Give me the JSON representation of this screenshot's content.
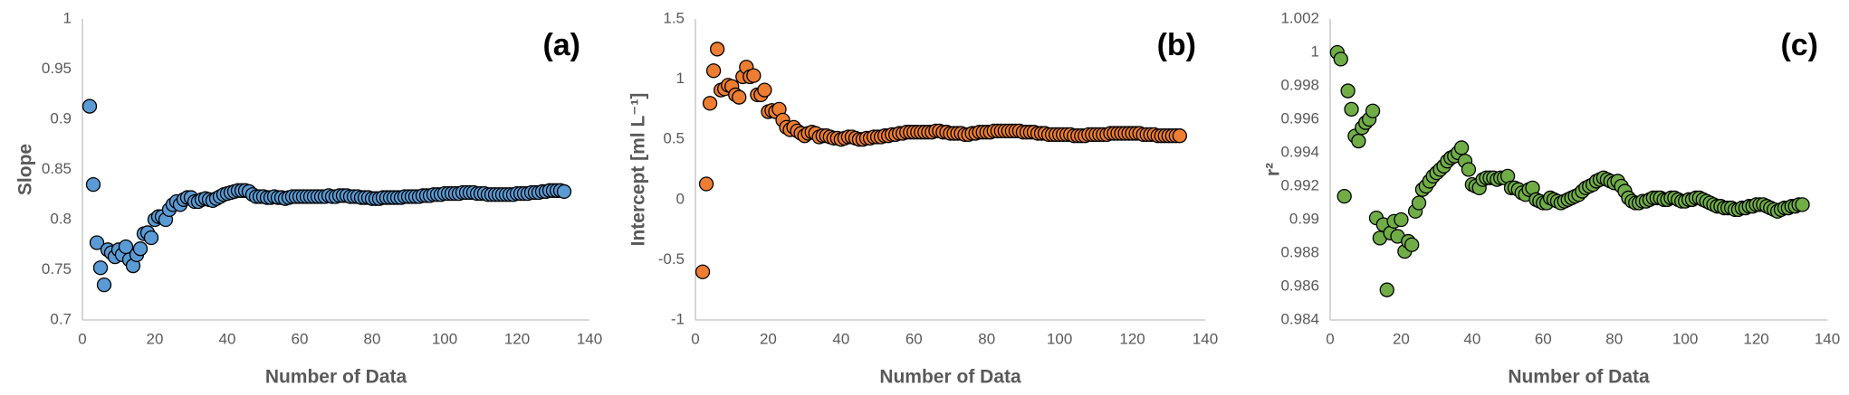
{
  "chart_data": [
    {
      "type": "scatter",
      "panel_label": "(a)",
      "xlabel": "Number of Data",
      "ylabel": "Slope",
      "color": "#5b9bd5",
      "xlim": [
        0,
        140
      ],
      "xticks": [
        0,
        20,
        40,
        60,
        80,
        100,
        120,
        140
      ],
      "ylim": [
        0.7,
        1
      ],
      "yticks": [
        0.7,
        0.75,
        0.8,
        0.85,
        0.9,
        0.95,
        1
      ],
      "grid": false,
      "x": [
        2,
        3,
        4,
        5,
        6,
        7,
        8,
        9,
        10,
        11,
        12,
        13,
        14,
        15,
        16,
        17,
        18,
        19,
        20,
        21,
        22,
        23,
        24,
        25,
        26,
        27,
        28,
        29,
        30,
        31,
        32,
        33,
        34,
        35,
        36,
        37,
        38,
        39,
        40,
        41,
        42,
        43,
        44,
        45,
        46,
        47,
        48,
        49,
        50,
        51,
        52,
        53,
        54,
        55,
        56,
        57,
        58,
        59,
        60,
        61,
        62,
        63,
        64,
        65,
        66,
        67,
        68,
        69,
        70,
        71,
        72,
        73,
        74,
        75,
        76,
        77,
        78,
        79,
        80,
        81,
        82,
        83,
        84,
        85,
        86,
        87,
        88,
        89,
        90,
        91,
        92,
        93,
        94,
        95,
        96,
        97,
        98,
        99,
        100,
        101,
        102,
        103,
        104,
        105,
        106,
        107,
        108,
        109,
        110,
        111,
        112,
        113,
        114,
        115,
        116,
        117,
        118,
        119,
        120,
        121,
        122,
        123,
        124,
        125,
        126,
        127,
        128,
        129,
        130,
        131,
        132,
        133
      ],
      "values": [
        0.913,
        0.835,
        0.777,
        0.752,
        0.735,
        0.77,
        0.767,
        0.763,
        0.77,
        0.765,
        0.773,
        0.76,
        0.754,
        0.765,
        0.771,
        0.786,
        0.787,
        0.782,
        0.8,
        0.803,
        0.803,
        0.8,
        0.81,
        0.815,
        0.818,
        0.815,
        0.82,
        0.822,
        0.822,
        0.818,
        0.818,
        0.82,
        0.821,
        0.82,
        0.819,
        0.821,
        0.823,
        0.825,
        0.826,
        0.827,
        0.828,
        0.829,
        0.829,
        0.829,
        0.828,
        0.825,
        0.823,
        0.823,
        0.823,
        0.822,
        0.822,
        0.823,
        0.822,
        0.822,
        0.821,
        0.822,
        0.823,
        0.823,
        0.823,
        0.823,
        0.823,
        0.823,
        0.823,
        0.823,
        0.823,
        0.823,
        0.824,
        0.823,
        0.823,
        0.824,
        0.824,
        0.824,
        0.823,
        0.823,
        0.823,
        0.822,
        0.822,
        0.822,
        0.821,
        0.821,
        0.821,
        0.822,
        0.822,
        0.822,
        0.822,
        0.822,
        0.822,
        0.823,
        0.823,
        0.823,
        0.823,
        0.823,
        0.824,
        0.824,
        0.824,
        0.825,
        0.825,
        0.825,
        0.826,
        0.826,
        0.826,
        0.826,
        0.826,
        0.827,
        0.827,
        0.827,
        0.827,
        0.826,
        0.826,
        0.826,
        0.825,
        0.825,
        0.825,
        0.825,
        0.825,
        0.825,
        0.825,
        0.825,
        0.826,
        0.826,
        0.826,
        0.826,
        0.827,
        0.827,
        0.827,
        0.828,
        0.828,
        0.829,
        0.829,
        0.829,
        0.829,
        0.828
      ]
    },
    {
      "type": "scatter",
      "panel_label": "(b)",
      "xlabel": "Number of Data",
      "ylabel": "Intercept [ml L⁻¹]",
      "color": "#ed7d31",
      "xlim": [
        0,
        140
      ],
      "xticks": [
        0,
        20,
        40,
        60,
        80,
        100,
        120,
        140
      ],
      "ylim": [
        -1,
        1.5
      ],
      "yticks": [
        -1,
        -0.5,
        0,
        0.5,
        1,
        1.5
      ],
      "grid": false,
      "x": [
        2,
        3,
        4,
        5,
        6,
        7,
        8,
        9,
        10,
        11,
        12,
        13,
        14,
        15,
        16,
        17,
        18,
        19,
        20,
        21,
        22,
        23,
        24,
        25,
        26,
        27,
        28,
        29,
        30,
        31,
        32,
        33,
        34,
        35,
        36,
        37,
        38,
        39,
        40,
        41,
        42,
        43,
        44,
        45,
        46,
        47,
        48,
        49,
        50,
        51,
        52,
        53,
        54,
        55,
        56,
        57,
        58,
        59,
        60,
        61,
        62,
        63,
        64,
        65,
        66,
        67,
        68,
        69,
        70,
        71,
        72,
        73,
        74,
        75,
        76,
        77,
        78,
        79,
        80,
        81,
        82,
        83,
        84,
        85,
        86,
        87,
        88,
        89,
        90,
        91,
        92,
        93,
        94,
        95,
        96,
        97,
        98,
        99,
        100,
        101,
        102,
        103,
        104,
        105,
        106,
        107,
        108,
        109,
        110,
        111,
        112,
        113,
        114,
        115,
        116,
        117,
        118,
        119,
        120,
        121,
        122,
        123,
        124,
        125,
        126,
        127,
        128,
        129,
        130,
        131,
        132,
        133
      ],
      "values": [
        -0.6,
        0.13,
        0.8,
        1.07,
        1.25,
        0.91,
        0.92,
        0.95,
        0.94,
        0.87,
        0.85,
        1.02,
        1.1,
        1.02,
        1.03,
        0.87,
        0.87,
        0.91,
        0.73,
        0.74,
        0.73,
        0.75,
        0.66,
        0.6,
        0.58,
        0.6,
        0.57,
        0.55,
        0.53,
        0.55,
        0.56,
        0.55,
        0.52,
        0.53,
        0.53,
        0.52,
        0.51,
        0.51,
        0.5,
        0.51,
        0.52,
        0.52,
        0.51,
        0.5,
        0.5,
        0.51,
        0.51,
        0.52,
        0.52,
        0.52,
        0.53,
        0.53,
        0.54,
        0.54,
        0.55,
        0.55,
        0.56,
        0.56,
        0.56,
        0.56,
        0.56,
        0.56,
        0.56,
        0.56,
        0.57,
        0.57,
        0.56,
        0.56,
        0.55,
        0.55,
        0.55,
        0.55,
        0.54,
        0.54,
        0.55,
        0.55,
        0.56,
        0.56,
        0.56,
        0.56,
        0.57,
        0.57,
        0.57,
        0.57,
        0.57,
        0.57,
        0.57,
        0.57,
        0.56,
        0.56,
        0.56,
        0.56,
        0.55,
        0.55,
        0.55,
        0.54,
        0.54,
        0.54,
        0.54,
        0.54,
        0.54,
        0.54,
        0.53,
        0.53,
        0.53,
        0.53,
        0.54,
        0.54,
        0.54,
        0.54,
        0.54,
        0.54,
        0.55,
        0.55,
        0.55,
        0.55,
        0.55,
        0.55,
        0.55,
        0.55,
        0.55,
        0.54,
        0.54,
        0.54,
        0.54,
        0.53,
        0.53,
        0.53,
        0.53,
        0.53,
        0.53,
        0.53
      ]
    },
    {
      "type": "scatter",
      "panel_label": "(c)",
      "xlabel": "Number of Data",
      "ylabel": "r²",
      "color": "#70ad47",
      "xlim": [
        0,
        140
      ],
      "xticks": [
        0,
        20,
        40,
        60,
        80,
        100,
        120,
        140
      ],
      "ylim": [
        0.984,
        1.002
      ],
      "yticks": [
        0.984,
        0.986,
        0.988,
        0.99,
        0.992,
        0.994,
        0.996,
        0.998,
        1,
        1.002
      ],
      "grid": false,
      "x": [
        2,
        3,
        4,
        5,
        6,
        7,
        8,
        9,
        10,
        11,
        12,
        13,
        14,
        15,
        16,
        17,
        18,
        19,
        20,
        21,
        22,
        23,
        24,
        25,
        26,
        27,
        28,
        29,
        30,
        31,
        32,
        33,
        34,
        35,
        36,
        37,
        38,
        39,
        40,
        41,
        42,
        43,
        44,
        45,
        46,
        47,
        48,
        49,
        50,
        51,
        52,
        53,
        54,
        55,
        56,
        57,
        58,
        59,
        60,
        61,
        62,
        63,
        64,
        65,
        66,
        67,
        68,
        69,
        70,
        71,
        72,
        73,
        74,
        75,
        76,
        77,
        78,
        79,
        80,
        81,
        82,
        83,
        84,
        85,
        86,
        87,
        88,
        89,
        90,
        91,
        92,
        93,
        94,
        95,
        96,
        97,
        98,
        99,
        100,
        101,
        102,
        103,
        104,
        105,
        106,
        107,
        108,
        109,
        110,
        111,
        112,
        113,
        114,
        115,
        116,
        117,
        118,
        119,
        120,
        121,
        122,
        123,
        124,
        125,
        126,
        127,
        128,
        129,
        130,
        131,
        132,
        133
      ],
      "values": [
        1.0,
        0.9996,
        0.9914,
        0.9977,
        0.9966,
        0.995,
        0.9947,
        0.9955,
        0.9958,
        0.996,
        0.9965,
        0.9901,
        0.9889,
        0.9897,
        0.9858,
        0.9892,
        0.9899,
        0.989,
        0.99,
        0.9881,
        0.9887,
        0.9885,
        0.9905,
        0.991,
        0.9918,
        0.992,
        0.9923,
        0.9926,
        0.9928,
        0.993,
        0.9932,
        0.9935,
        0.9937,
        0.9938,
        0.994,
        0.9943,
        0.9935,
        0.993,
        0.9921,
        0.992,
        0.9919,
        0.9924,
        0.9925,
        0.9925,
        0.9925,
        0.9924,
        0.9925,
        0.9925,
        0.9926,
        0.9919,
        0.9919,
        0.9918,
        0.9916,
        0.9915,
        0.9918,
        0.9919,
        0.9912,
        0.9911,
        0.991,
        0.991,
        0.9913,
        0.9912,
        0.9911,
        0.991,
        0.9911,
        0.9912,
        0.9913,
        0.9914,
        0.9915,
        0.9917,
        0.9919,
        0.992,
        0.9921,
        0.9923,
        0.9924,
        0.9925,
        0.9924,
        0.9923,
        0.9922,
        0.9923,
        0.992,
        0.9917,
        0.9913,
        0.9911,
        0.991,
        0.991,
        0.9911,
        0.9911,
        0.9912,
        0.9913,
        0.9913,
        0.9913,
        0.9912,
        0.9912,
        0.9913,
        0.9913,
        0.9912,
        0.9911,
        0.9911,
        0.9912,
        0.9912,
        0.9913,
        0.9913,
        0.9912,
        0.9911,
        0.991,
        0.9909,
        0.9908,
        0.9908,
        0.9907,
        0.9907,
        0.9907,
        0.9906,
        0.9906,
        0.9907,
        0.9907,
        0.9908,
        0.9908,
        0.9909,
        0.9909,
        0.9909,
        0.9908,
        0.9907,
        0.9906,
        0.9905,
        0.9906,
        0.9907,
        0.9907,
        0.9908,
        0.9908,
        0.9909,
        0.9909
      ]
    }
  ]
}
